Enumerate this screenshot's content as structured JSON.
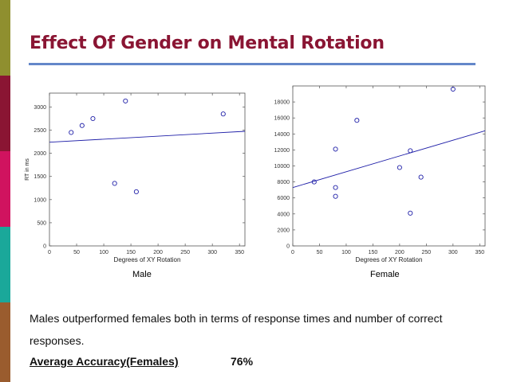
{
  "slide": {
    "title": "Effect Of Gender on Mental Rotation",
    "accent_colors": [
      "#8f8f2f",
      "#8a1533",
      "#d0135f",
      "#1aa89a",
      "#9a5c2e",
      "#4e5f8a"
    ],
    "title_color": "#8a1533",
    "rule_color": "#6487c9"
  },
  "chart_data": [
    {
      "type": "scatter",
      "name": "male",
      "caption": "Male",
      "xlabel": "Degrees of XY Rotation",
      "ylabel": "RT in ms",
      "xlim": [
        0,
        360
      ],
      "ylim": [
        0,
        3300
      ],
      "xticks": [
        0,
        50,
        100,
        150,
        200,
        250,
        300,
        350
      ],
      "yticks": [
        0,
        500,
        1000,
        1500,
        2000,
        2500,
        3000
      ],
      "points": [
        [
          40,
          2450
        ],
        [
          60,
          2600
        ],
        [
          80,
          2750
        ],
        [
          120,
          1350
        ],
        [
          140,
          3130
        ],
        [
          160,
          1170
        ],
        [
          320,
          2850
        ]
      ],
      "trendline": [
        [
          0,
          2240
        ],
        [
          360,
          2475
        ]
      ]
    },
    {
      "type": "scatter",
      "name": "female",
      "caption": "Female",
      "xlabel": "Degrees of XY Rotation",
      "ylabel": "",
      "xlim": [
        0,
        360
      ],
      "ylim": [
        0,
        20000
      ],
      "xticks": [
        0,
        50,
        100,
        150,
        200,
        250,
        300,
        350
      ],
      "yticks": [
        0,
        2000,
        4000,
        6000,
        8000,
        10000,
        12000,
        14000,
        16000,
        18000
      ],
      "points": [
        [
          40,
          8000
        ],
        [
          80,
          12100
        ],
        [
          80,
          7300
        ],
        [
          80,
          6200
        ],
        [
          120,
          15700
        ],
        [
          200,
          9800
        ],
        [
          220,
          11900
        ],
        [
          220,
          4100
        ],
        [
          240,
          8600
        ],
        [
          300,
          19600
        ]
      ],
      "trendline": [
        [
          0,
          7300
        ],
        [
          360,
          14400
        ]
      ]
    }
  ],
  "text": {
    "summary": "Males outperformed females both in terms of response times and number of correct responses.",
    "accuracy_label": "Average Accuracy(Females)",
    "accuracy_value": "76%"
  }
}
